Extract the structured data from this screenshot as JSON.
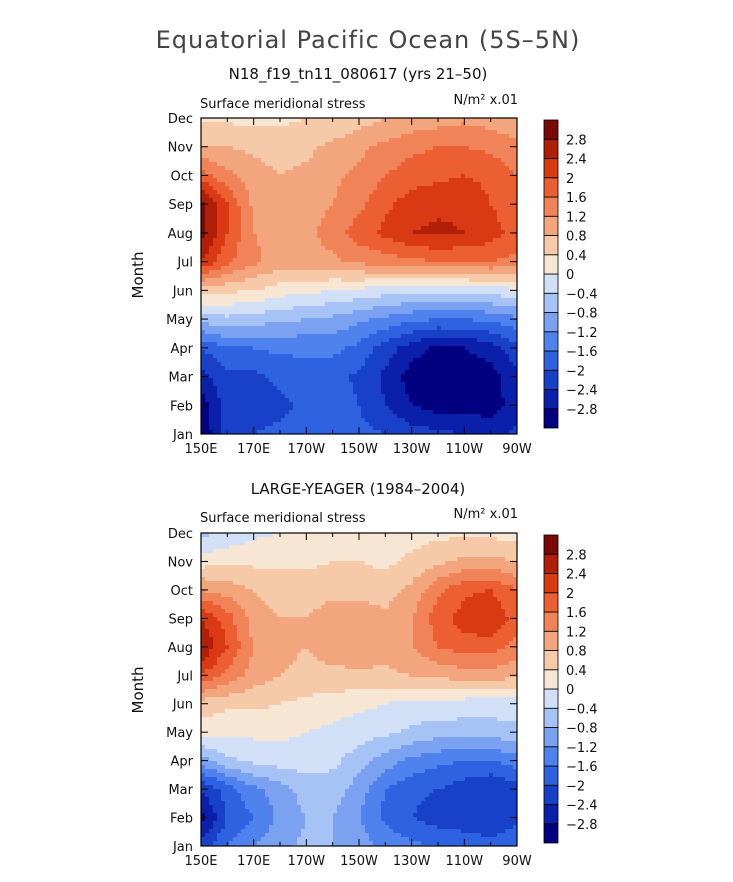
{
  "figure": {
    "title": "Equatorial Pacific Ocean (5S–5N)"
  },
  "chart_data": [
    {
      "type": "heatmap",
      "panel_title": "N18_f19_tn11_080617 (yrs 21–50)",
      "left_label": "Surface meridional stress",
      "right_label": "N/m² x.01",
      "ylabel": "Month",
      "x_ticks": [
        "150E",
        "170E",
        "170W",
        "150W",
        "130W",
        "110W",
        "90W"
      ],
      "y_ticks": [
        "Jan",
        "Feb",
        "Mar",
        "Apr",
        "May",
        "Jun",
        "Jul",
        "Aug",
        "Sep",
        "Oct",
        "Nov",
        "Dec"
      ],
      "x": [
        150,
        160,
        170,
        180,
        190,
        200,
        210,
        220,
        230,
        240,
        250,
        260,
        270
      ],
      "rows": [
        [
          -3.2,
          -2.2,
          -2.0,
          -1.9,
          -1.8,
          -1.8,
          -1.9,
          -2.0,
          -2.2,
          -2.3,
          -2.4,
          -2.5,
          -2.3
        ],
        [
          -3.0,
          -2.2,
          -2.2,
          -2.1,
          -1.9,
          -1.8,
          -2.0,
          -2.4,
          -2.8,
          -3.0,
          -3.0,
          -3.0,
          -2.6
        ],
        [
          -2.6,
          -2.1,
          -2.1,
          -1.9,
          -1.8,
          -1.8,
          -2.1,
          -2.5,
          -3.0,
          -3.2,
          -3.1,
          -3.0,
          -2.5
        ],
        [
          -2.0,
          -1.6,
          -1.6,
          -1.5,
          -1.5,
          -1.5,
          -1.7,
          -2.2,
          -2.6,
          -2.9,
          -2.8,
          -2.6,
          -2.1
        ],
        [
          -0.6,
          -0.5,
          -0.6,
          -0.7,
          -0.8,
          -0.9,
          -1.1,
          -1.3,
          -1.5,
          -1.6,
          -1.6,
          -1.5,
          -1.3
        ],
        [
          0.6,
          0.5,
          0.4,
          0.2,
          0.1,
          0.0,
          -0.1,
          -0.2,
          -0.3,
          -0.3,
          -0.3,
          -0.2,
          -0.1
        ],
        [
          2.4,
          1.7,
          1.3,
          1.0,
          1.0,
          1.1,
          1.3,
          1.4,
          1.5,
          1.6,
          1.6,
          1.6,
          1.5
        ],
        [
          3.0,
          2.0,
          1.2,
          1.0,
          1.1,
          1.4,
          1.8,
          2.1,
          2.4,
          2.5,
          2.4,
          2.2,
          1.8
        ],
        [
          3.0,
          2.0,
          1.1,
          0.9,
          1.0,
          1.2,
          1.5,
          1.9,
          2.2,
          2.3,
          2.3,
          2.0,
          1.7
        ],
        [
          1.8,
          1.3,
          1.0,
          0.8,
          0.9,
          1.1,
          1.3,
          1.6,
          1.8,
          1.9,
          2.0,
          1.9,
          1.6
        ],
        [
          0.8,
          0.8,
          0.7,
          0.6,
          0.7,
          0.9,
          1.1,
          1.3,
          1.5,
          1.6,
          1.6,
          1.5,
          1.3
        ],
        [
          0.3,
          0.3,
          0.3,
          0.3,
          0.4,
          0.4,
          0.6,
          0.8,
          0.9,
          1.0,
          1.1,
          1.0,
          0.9
        ]
      ],
      "colorbar_labels": [
        "2.8",
        "2.4",
        "2",
        "1.6",
        "1.2",
        "0.8",
        "0.4",
        "0",
        "−0.4",
        "−0.8",
        "−1.2",
        "−1.6",
        "−2",
        "−2.4",
        "−2.8"
      ]
    },
    {
      "type": "heatmap",
      "panel_title": "LARGE-YEAGER (1984–2004)",
      "left_label": "Surface meridional stress",
      "right_label": "N/m² x.01",
      "ylabel": "Month",
      "x_ticks": [
        "150E",
        "170E",
        "170W",
        "150W",
        "130W",
        "110W",
        "90W"
      ],
      "y_ticks": [
        "Jan",
        "Feb",
        "Mar",
        "Apr",
        "May",
        "Jun",
        "Jul",
        "Aug",
        "Sep",
        "Oct",
        "Nov",
        "Dec"
      ],
      "x": [
        150,
        160,
        170,
        180,
        190,
        200,
        210,
        220,
        230,
        240,
        250,
        260,
        270
      ],
      "rows": [
        [
          -2.2,
          -1.6,
          -1.2,
          -0.9,
          -0.7,
          -0.8,
          -1.0,
          -1.3,
          -1.5,
          -1.6,
          -1.7,
          -1.8,
          -1.7
        ],
        [
          -3.0,
          -2.0,
          -1.6,
          -1.1,
          -0.8,
          -0.8,
          -1.2,
          -1.7,
          -2.0,
          -2.2,
          -2.3,
          -2.4,
          -2.1
        ],
        [
          -2.4,
          -1.8,
          -1.3,
          -1.0,
          -0.6,
          -0.6,
          -1.0,
          -1.6,
          -1.9,
          -2.0,
          -2.2,
          -2.4,
          -2.2
        ],
        [
          -1.0,
          -0.5,
          -0.3,
          -0.2,
          -0.2,
          -0.3,
          -0.6,
          -1.0,
          -1.3,
          -1.5,
          -1.6,
          -1.6,
          -1.4
        ],
        [
          0.2,
          0.1,
          0.1,
          0.1,
          0.0,
          -0.1,
          -0.2,
          -0.3,
          -0.5,
          -0.6,
          -0.6,
          -0.6,
          -0.5
        ],
        [
          0.6,
          0.5,
          0.5,
          0.4,
          0.3,
          0.2,
          0.1,
          0.0,
          -0.1,
          -0.1,
          -0.2,
          -0.2,
          -0.2
        ],
        [
          2.0,
          1.5,
          1.0,
          0.8,
          0.7,
          0.7,
          0.7,
          0.7,
          0.8,
          0.9,
          1.0,
          1.0,
          0.9
        ],
        [
          2.8,
          2.0,
          1.2,
          0.9,
          0.8,
          1.0,
          1.1,
          1.0,
          1.2,
          1.6,
          1.8,
          1.8,
          1.4
        ],
        [
          2.4,
          1.8,
          1.0,
          0.8,
          0.8,
          1.0,
          1.0,
          0.9,
          1.2,
          1.8,
          2.2,
          2.4,
          1.8
        ],
        [
          1.2,
          1.0,
          0.8,
          0.6,
          0.6,
          0.7,
          0.7,
          0.6,
          0.9,
          1.5,
          1.9,
          2.0,
          1.6
        ],
        [
          0.2,
          0.3,
          0.3,
          0.3,
          0.3,
          0.4,
          0.4,
          0.3,
          0.5,
          0.7,
          0.9,
          0.9,
          0.8
        ],
        [
          -0.5,
          -0.3,
          -0.1,
          0.0,
          0.0,
          0.1,
          0.1,
          0.1,
          0.2,
          0.3,
          0.3,
          0.3,
          0.2
        ]
      ],
      "colorbar_labels": [
        "2.8",
        "2.4",
        "2",
        "1.6",
        "1.2",
        "0.8",
        "0.4",
        "0",
        "−0.4",
        "−0.8",
        "−1.2",
        "−1.6",
        "−2",
        "−2.4",
        "−2.8"
      ]
    }
  ],
  "palette": [
    "#000080",
    "#0a1faa",
    "#1940c8",
    "#2e62e0",
    "#4f82ec",
    "#7ba2f0",
    "#a7c2f4",
    "#d1e0f6",
    "#f7e6d4",
    "#f6c9a9",
    "#f3a67e",
    "#f08458",
    "#ec5f33",
    "#d93a14",
    "#b11f08",
    "#7a0a05"
  ],
  "levels": [
    -3.2,
    -2.8,
    -2.4,
    -2.0,
    -1.6,
    -1.2,
    -0.8,
    -0.4,
    0.0,
    0.4,
    0.8,
    1.2,
    1.6,
    2.0,
    2.4,
    2.8,
    3.2
  ]
}
